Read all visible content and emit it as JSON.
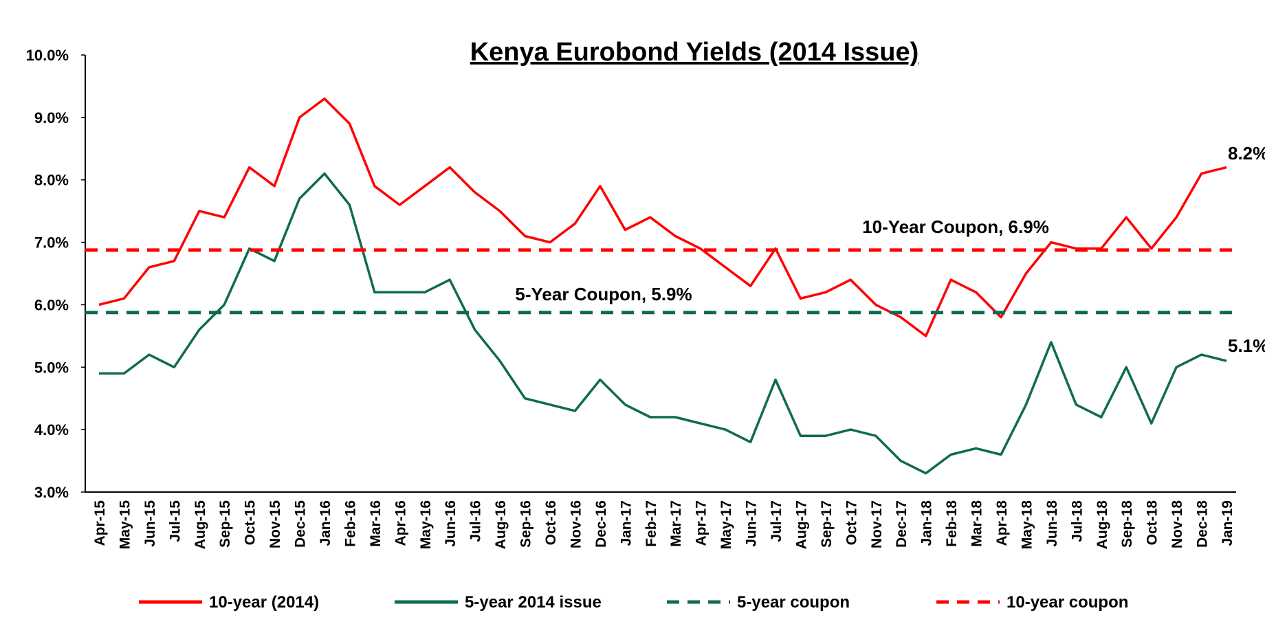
{
  "chart_data": {
    "type": "line",
    "title": "Kenya Eurobond Yields (2014 Issue)",
    "xlabel": "",
    "ylabel": "",
    "ylim": [
      3.0,
      10.0
    ],
    "yticks": [
      "3.0%",
      "4.0%",
      "5.0%",
      "6.0%",
      "7.0%",
      "8.0%",
      "9.0%",
      "10.0%"
    ],
    "xticks": [
      "Apr-15",
      "May-15",
      "Jun-15",
      "Jul-15",
      "Aug-15",
      "Sep-15",
      "Oct-15",
      "Nov-15",
      "Dec-15",
      "Jan-16",
      "Feb-16",
      "Mar-16",
      "Apr-16",
      "May-16",
      "Jun-16",
      "Jul-16",
      "Aug-16",
      "Sep-16",
      "Oct-16",
      "Nov-16",
      "Dec-16",
      "Jan-17",
      "Feb-17",
      "Mar-17",
      "Apr-17",
      "May-17",
      "Jun-17",
      "Jul-17",
      "Aug-17",
      "Sep-17",
      "Oct-17",
      "Nov-17",
      "Dec-17",
      "Jan-18",
      "Feb-18",
      "Mar-18",
      "Apr-18",
      "May-18",
      "Jun-18",
      "Jul-18",
      "Aug-18",
      "Sep-18",
      "Oct-18",
      "Nov-18",
      "Dec-18",
      "Jan-19"
    ],
    "grid": false,
    "legend_position": "bottom",
    "series": [
      {
        "name": "10-year (2014)",
        "color": "#ff0000",
        "style": "solid",
        "x": [
          "Apr-15",
          "May-15",
          "Jun-15",
          "Jul-15",
          "Aug-15",
          "Sep-15",
          "Oct-15",
          "Nov-15",
          "Dec-15",
          "Jan-16",
          "Feb-16",
          "Mar-16",
          "Apr-16",
          "May-16",
          "Jun-16",
          "Jul-16",
          "Aug-16",
          "Sep-16",
          "Oct-16",
          "Nov-16",
          "Dec-16",
          "Jan-17",
          "Feb-17",
          "Mar-17",
          "Apr-17",
          "May-17",
          "Jun-17",
          "Jul-17",
          "Aug-17",
          "Sep-17",
          "Oct-17",
          "Nov-17",
          "Dec-17",
          "Jan-18",
          "Feb-18",
          "Mar-18",
          "Apr-18",
          "May-18",
          "Jun-18",
          "Jul-18",
          "Aug-18",
          "Sep-18",
          "Oct-18",
          "Nov-18",
          "Dec-18",
          "Jan-19"
        ],
        "values": [
          6.0,
          6.1,
          6.6,
          6.7,
          7.5,
          7.4,
          8.2,
          7.9,
          9.0,
          9.3,
          8.9,
          7.9,
          7.6,
          7.9,
          8.2,
          7.8,
          7.5,
          7.1,
          7.0,
          7.3,
          7.9,
          7.2,
          7.4,
          7.1,
          6.9,
          6.6,
          6.3,
          6.9,
          6.1,
          6.2,
          6.4,
          6.0,
          5.8,
          5.5,
          6.4,
          6.2,
          5.8,
          6.5,
          7.0,
          6.9,
          6.9,
          7.4,
          6.9,
          7.4,
          8.1,
          8.2
        ]
      },
      {
        "name": "5-year 2014 issue",
        "color": "#0f6b50",
        "style": "solid",
        "x": [
          "Apr-15",
          "May-15",
          "Jun-15",
          "Jul-15",
          "Aug-15",
          "Sep-15",
          "Oct-15",
          "Nov-15",
          "Dec-15",
          "Jan-16",
          "Feb-16",
          "Mar-16",
          "Apr-16",
          "May-16",
          "Jun-16",
          "Jul-16",
          "Aug-16",
          "Sep-16",
          "Oct-16",
          "Nov-16",
          "Dec-16",
          "Jan-17",
          "Feb-17",
          "Mar-17",
          "Apr-17",
          "May-17",
          "Jun-17",
          "Jul-17",
          "Aug-17",
          "Sep-17",
          "Oct-17",
          "Nov-17",
          "Dec-17",
          "Jan-18",
          "Feb-18",
          "Mar-18",
          "Apr-18",
          "May-18",
          "Jun-18",
          "Jul-18",
          "Aug-18",
          "Sep-18",
          "Oct-18",
          "Nov-18",
          "Dec-18",
          "Jan-19"
        ],
        "values": [
          4.9,
          4.9,
          5.2,
          5.0,
          5.6,
          6.0,
          6.9,
          6.7,
          7.7,
          8.1,
          7.6,
          6.2,
          6.2,
          6.2,
          6.4,
          5.6,
          5.1,
          4.5,
          4.4,
          4.3,
          4.8,
          4.4,
          4.2,
          4.2,
          4.1,
          4.0,
          3.8,
          4.8,
          3.9,
          3.9,
          4.0,
          3.9,
          3.5,
          3.3,
          3.6,
          3.7,
          3.6,
          4.4,
          5.4,
          4.4,
          4.2,
          5.0,
          4.1,
          5.0,
          5.2,
          5.1
        ]
      },
      {
        "name": "5-year coupon",
        "color": "#0f6b50",
        "style": "dashed",
        "value": 5.875
      },
      {
        "name": "10-year coupon",
        "color": "#ff0000",
        "style": "dashed",
        "value": 6.875
      }
    ],
    "annotations": {
      "ten_year_coupon_label": "10-Year Coupon, 6.9%",
      "five_year_coupon_label": "5-Year Coupon, 5.9%",
      "ten_year_last_value": "8.2%",
      "five_year_last_value": "5.1%"
    }
  }
}
